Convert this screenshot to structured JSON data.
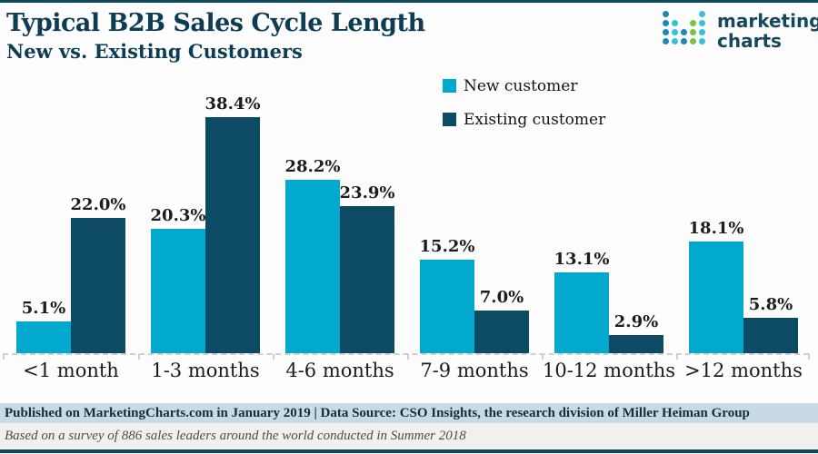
{
  "header": {
    "title": "Typical B2B Sales Cycle Length",
    "subtitle": "New vs. Existing Customers"
  },
  "logo": {
    "word_line1": "marketing",
    "word_line2": "charts",
    "colors": {
      "blue": "#2088b5",
      "teal": "#38c1d6",
      "green": "#7cc142",
      "navy": "#15475e"
    },
    "dot_grid": [
      [
        "blue",
        "",
        "",
        "",
        "teal"
      ],
      [
        "blue",
        "teal",
        "",
        "green",
        "teal"
      ],
      [
        "blue",
        "teal",
        "blue",
        "green",
        "teal"
      ],
      [
        "blue",
        "teal",
        "blue",
        "green",
        "teal"
      ]
    ]
  },
  "legend": [
    {
      "label": "New customer",
      "color": "#00a9cd"
    },
    {
      "label": "Existing customer",
      "color": "#0d4a63"
    }
  ],
  "chart_data": {
    "type": "bar",
    "title": "Typical B2B Sales Cycle Length",
    "subtitle": "New vs. Existing Customers",
    "categories": [
      "<1 month",
      "1-3 months",
      "4-6 months",
      "7-9 months",
      "10-12 months",
      ">12 months"
    ],
    "series": [
      {
        "name": "New customer",
        "color": "#00a9cd",
        "values": [
          5.1,
          20.3,
          28.2,
          15.2,
          13.1,
          18.1
        ]
      },
      {
        "name": "Existing customer",
        "color": "#0d4a63",
        "values": [
          22.0,
          38.4,
          23.9,
          7.0,
          2.9,
          5.8
        ]
      }
    ],
    "value_suffix": "%",
    "xlabel": "",
    "ylabel": "",
    "ylim": [
      0,
      40
    ],
    "grid": false,
    "legend_position": "top-center",
    "data_labels": true
  },
  "footer": {
    "published_line": "Published on MarketingCharts.com in January 2019 | Data Source: CSO Insights, the research division of Miller Heiman Group",
    "note_line": "Based on a survey of 886 sales leaders around the world conducted in Summer 2018"
  },
  "accent_colors": {
    "border_teal": "#0d4a5e",
    "title_navy": "#0d3c55",
    "published_bg": "#c8dae3",
    "note_bg": "#f0f0ee"
  }
}
